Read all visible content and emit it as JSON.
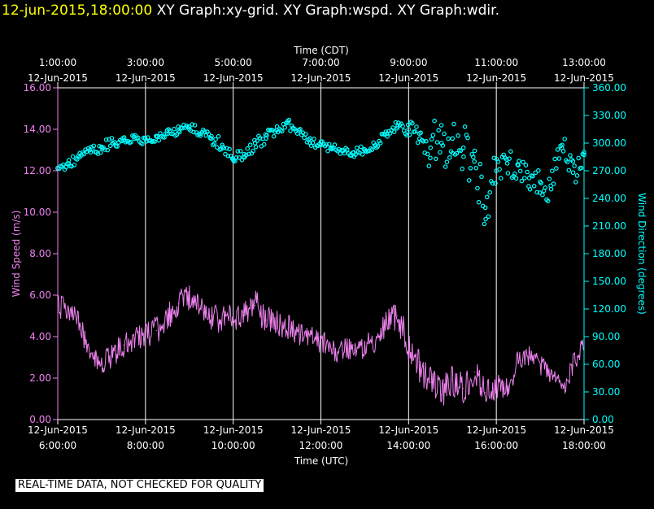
{
  "header": {
    "timestamp": "12-jun-2015,18:00:00",
    "graphs": "XY Graph:xy-grid.  XY Graph:wspd.  XY Graph:wdir."
  },
  "disclaimer": "REAL-TIME DATA, NOT CHECKED FOR QUALITY",
  "colors": {
    "wspd": "#ee82ee",
    "wdir": "#00ffff",
    "grid": "#ffffff",
    "title": "#ffff00"
  },
  "chart_data": {
    "type": "line",
    "top_axis_title": "Time (CDT)",
    "bottom_axis_title": "Time (UTC)",
    "xlim": [
      6,
      18
    ],
    "top_ticks": [
      {
        "x": 6,
        "time": "1:00:00",
        "date": "12-Jun-2015"
      },
      {
        "x": 8,
        "time": "3:00:00",
        "date": "12-Jun-2015"
      },
      {
        "x": 10,
        "time": "5:00:00",
        "date": "12-Jun-2015"
      },
      {
        "x": 12,
        "time": "7:00:00",
        "date": "12-Jun-2015"
      },
      {
        "x": 14,
        "time": "9:00:00",
        "date": "12-Jun-2015"
      },
      {
        "x": 16,
        "time": "11:00:00",
        "date": "12-Jun-2015"
      },
      {
        "x": 18,
        "time": "13:00:00",
        "date": "12-Jun-2015"
      }
    ],
    "bottom_ticks": [
      {
        "x": 6,
        "date": "12-Jun-2015",
        "time": "6:00:00"
      },
      {
        "x": 8,
        "date": "12-Jun-2015",
        "time": "8:00:00"
      },
      {
        "x": 10,
        "date": "12-Jun-2015",
        "time": "10:00:00"
      },
      {
        "x": 12,
        "date": "12-Jun-2015",
        "time": "12:00:00"
      },
      {
        "x": 14,
        "date": "12-Jun-2015",
        "time": "14:00:00"
      },
      {
        "x": 16,
        "date": "12-Jun-2015",
        "time": "16:00:00"
      },
      {
        "x": 18,
        "date": "12-Jun-2015",
        "time": "18:00:00"
      }
    ],
    "left_axis": {
      "label": "Wind Speed (m/s)",
      "ylim": [
        0,
        16
      ],
      "ticks": [
        "0.00",
        "2.00",
        "4.00",
        "6.00",
        "8.00",
        "10.00",
        "12.00",
        "14.00",
        "16.00"
      ]
    },
    "right_axis": {
      "label": "Wind Direction (degrees)",
      "ylim": [
        0,
        360
      ],
      "ticks": [
        "0.00",
        "30.00",
        "60.00",
        "90.00",
        "120.00",
        "150.00",
        "180.00",
        "210.00",
        "240.00",
        "270.00",
        "300.00",
        "330.00",
        "360.00"
      ]
    },
    "series": [
      {
        "name": "Wind Speed (m/s)",
        "axis": "left",
        "style": "line",
        "x": [
          6.0,
          6.25,
          6.5,
          6.75,
          7.0,
          7.25,
          7.5,
          7.75,
          8.0,
          8.25,
          8.5,
          8.75,
          9.0,
          9.25,
          9.5,
          9.75,
          10.0,
          10.25,
          10.5,
          10.75,
          11.0,
          11.25,
          11.5,
          11.75,
          12.0,
          12.25,
          12.5,
          12.75,
          13.0,
          13.25,
          13.5,
          13.75,
          14.0,
          14.25,
          14.5,
          14.75,
          15.0,
          15.25,
          15.5,
          15.75,
          16.0,
          16.25,
          16.5,
          16.75,
          17.0,
          17.25,
          17.5,
          17.75,
          18.0
        ],
        "values": [
          5.5,
          5.3,
          4.5,
          3.2,
          2.7,
          3.1,
          3.6,
          3.9,
          4.1,
          4.3,
          5.0,
          5.6,
          5.8,
          5.5,
          5.0,
          4.8,
          4.9,
          5.0,
          5.5,
          4.8,
          4.7,
          4.4,
          4.1,
          4.0,
          3.8,
          3.4,
          3.3,
          3.6,
          3.5,
          3.8,
          4.6,
          5.0,
          3.5,
          2.5,
          1.8,
          1.2,
          1.9,
          1.5,
          2.3,
          1.3,
          1.6,
          1.4,
          2.8,
          3.0,
          2.6,
          2.2,
          1.5,
          2.6,
          3.6
        ],
        "spread": [
          0.6,
          0.6,
          0.6,
          0.5,
          0.5,
          0.6,
          0.6,
          0.6,
          0.6,
          0.7,
          0.7,
          0.7,
          0.7,
          0.7,
          0.7,
          0.7,
          0.7,
          0.7,
          0.8,
          0.7,
          0.7,
          0.7,
          0.7,
          0.6,
          0.6,
          0.6,
          0.6,
          0.6,
          0.6,
          0.6,
          0.7,
          0.8,
          0.8,
          0.8,
          0.8,
          0.8,
          0.8,
          0.7,
          0.7,
          0.6,
          0.6,
          0.6,
          0.6,
          0.6,
          0.5,
          0.5,
          0.5,
          0.6,
          0.5
        ]
      },
      {
        "name": "Wind Direction (degrees)",
        "axis": "right",
        "style": "markers",
        "x": [
          6.0,
          6.25,
          6.5,
          6.75,
          7.0,
          7.25,
          7.5,
          7.75,
          8.0,
          8.25,
          8.5,
          8.75,
          9.0,
          9.25,
          9.5,
          9.75,
          10.0,
          10.25,
          10.5,
          10.75,
          11.0,
          11.25,
          11.5,
          11.75,
          12.0,
          12.25,
          12.5,
          12.75,
          13.0,
          13.25,
          13.5,
          13.75,
          14.0,
          14.25,
          14.5,
          14.75,
          15.0,
          15.25,
          15.5,
          15.75,
          16.0,
          16.25,
          16.5,
          16.75,
          17.0,
          17.25,
          17.5,
          17.75,
          18.0
        ],
        "values": [
          273,
          278,
          285,
          290,
          296,
          300,
          303,
          305,
          305,
          307,
          310,
          313,
          318,
          310,
          305,
          298,
          282,
          288,
          300,
          305,
          318,
          322,
          314,
          300,
          298,
          295,
          292,
          290,
          293,
          298,
          310,
          318,
          315,
          305,
          295,
          300,
          305,
          295,
          280,
          230,
          270,
          278,
          276,
          262,
          258,
          250,
          298,
          268,
          290
        ],
        "spread": [
          5,
          5,
          6,
          6,
          6,
          6,
          6,
          6,
          6,
          5,
          5,
          5,
          5,
          6,
          6,
          8,
          7,
          8,
          8,
          8,
          7,
          7,
          7,
          6,
          5,
          5,
          5,
          5,
          5,
          5,
          6,
          6,
          8,
          18,
          28,
          30,
          25,
          30,
          30,
          25,
          22,
          15,
          15,
          15,
          15,
          20,
          12,
          20,
          15
        ]
      }
    ]
  }
}
